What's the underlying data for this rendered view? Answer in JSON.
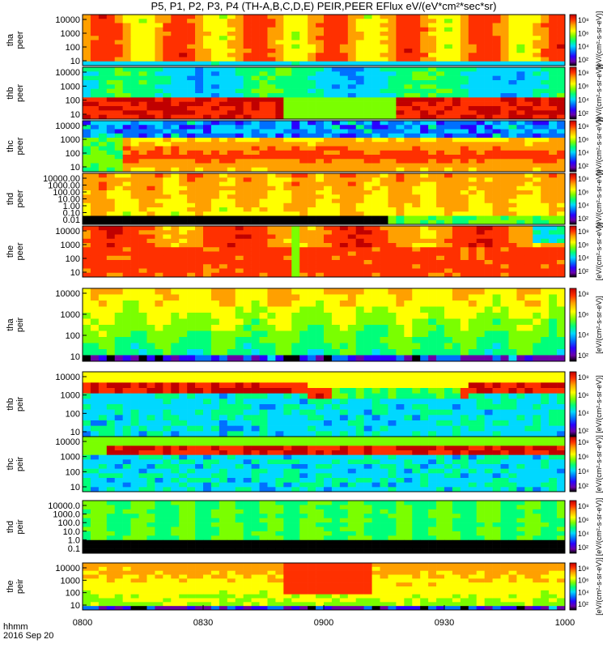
{
  "title": "P5, P1, P2, P3, P4 (TH-A,B,C,D,E) PEIR,PEER EFlux eV/(eV*cm²*sec*sr)",
  "footer": {
    "axis_name": "hhmm",
    "date": "2016 Sep 20"
  },
  "colorbar_unit": "[eV/(cm²-s-sr-eV)]",
  "colormap": [
    "#000000",
    "#6a00a8",
    "#2a00ff",
    "#0070ff",
    "#00d8ff",
    "#00ff7a",
    "#7aff00",
    "#ffff00",
    "#ffa000",
    "#ff3000",
    "#c00000"
  ],
  "chart_data": {
    "type": "heatmap",
    "x": {
      "ticks": [
        "0800",
        "0830",
        "0900",
        "0930",
        "1000"
      ],
      "range": [
        "08:00",
        "10:00"
      ]
    },
    "panels": [
      {
        "label_line1": "tha",
        "label_line2": "peer",
        "y_ticks": [
          "10000",
          "1000",
          "100",
          "10"
        ],
        "scale": "log",
        "cbar_ticks": [
          "10⁸",
          "10⁶",
          "10⁴",
          "10²"
        ]
      },
      {
        "label_line1": "thb",
        "label_line2": "peer",
        "y_ticks": [
          "10000",
          "1000",
          "100",
          "10"
        ],
        "scale": "log",
        "cbar_ticks": [
          "10⁸",
          "10⁶",
          "10⁴",
          "10²"
        ]
      },
      {
        "label_line1": "thc",
        "label_line2": "peer",
        "y_ticks": [
          "10000",
          "1000",
          "100",
          "10"
        ],
        "scale": "log",
        "cbar_ticks": [
          "10⁸",
          "10⁶",
          "10⁴",
          "10²"
        ]
      },
      {
        "label_line1": "thd",
        "label_line2": "peer",
        "y_ticks": [
          "10000.00",
          "1000.00",
          "100.00",
          "10.00",
          "1.00",
          "0.10",
          "0.01"
        ],
        "scale": "log",
        "cbar_ticks": [
          "10⁸",
          "10⁶",
          "10⁴",
          "10²"
        ]
      },
      {
        "label_line1": "the",
        "label_line2": "peer",
        "y_ticks": [
          "10000",
          "1000",
          "100",
          "10"
        ],
        "scale": "log",
        "cbar_ticks": [
          "10⁸",
          "10⁶",
          "10⁴",
          "10²"
        ]
      },
      {
        "label_line1": "tha",
        "label_line2": "peir",
        "y_ticks": [
          "10000",
          "1000",
          "100",
          "10"
        ],
        "scale": "log",
        "cbar_ticks": [
          "10⁸",
          "10⁶",
          "10⁴",
          "10²"
        ]
      },
      {
        "label_line1": "thb",
        "label_line2": "peir",
        "y_ticks": [
          "10000",
          "1000",
          "100",
          "10"
        ],
        "scale": "log",
        "cbar_ticks": [
          "10⁸",
          "10⁶",
          "10⁴",
          "10²"
        ]
      },
      {
        "label_line1": "thc",
        "label_line2": "peir",
        "y_ticks": [
          "10000",
          "1000",
          "100",
          "10"
        ],
        "scale": "log",
        "cbar_ticks": [
          "10⁸",
          "10⁶",
          "10⁴",
          "10²"
        ]
      },
      {
        "label_line1": "thd",
        "label_line2": "peir",
        "y_ticks": [
          "10000.0",
          "1000.0",
          "100.0",
          "10.0",
          "1.0",
          "0.1"
        ],
        "scale": "log",
        "cbar_ticks": [
          "10⁸",
          "10⁶",
          "10⁴",
          "10²"
        ]
      },
      {
        "label_line1": "the",
        "label_line2": "peir",
        "y_ticks": [
          "10000",
          "1000",
          "100",
          "10"
        ],
        "scale": "log",
        "cbar_ticks": [
          "10⁸",
          "10⁶",
          "10⁴",
          "10²"
        ]
      }
    ]
  }
}
